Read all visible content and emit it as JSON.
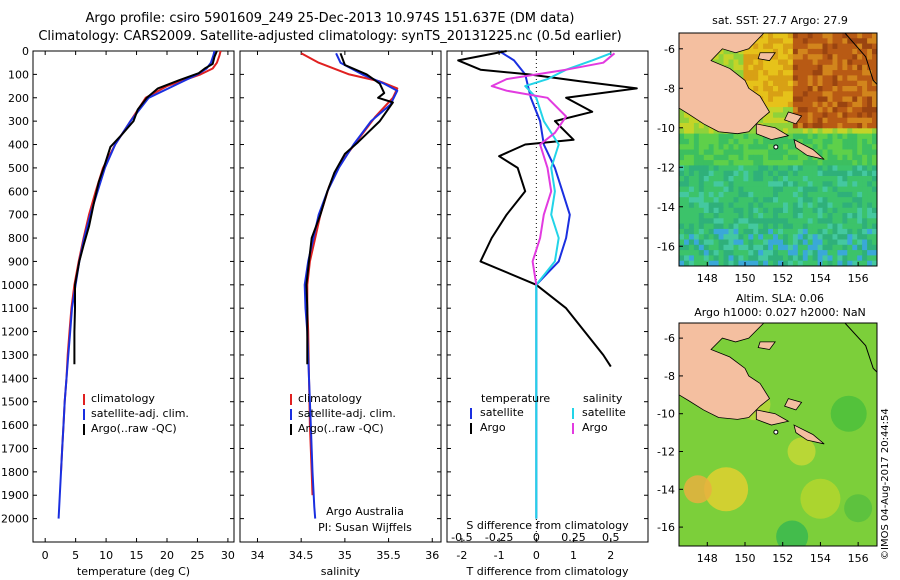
{
  "header": {
    "line1": "Argo profile: csiro 5901609_249 25-Dec-2013 10.974S 151.637E (DM data)",
    "line2": "Climatology: CARS2009. Satellite-adjusted climatology: synTS_20131225.nc (0.5d earlier)"
  },
  "colors": {
    "climatology": "#e02020",
    "satellite": "#1a2fe0",
    "argo": "#000000",
    "argo_s": "#e23be0",
    "sat_s": "#22d4e8"
  },
  "chart_data": [
    {
      "type": "line",
      "id": "temperature-profile",
      "xlabel": "temperature (deg C)",
      "ylabel": "",
      "xlim": [
        -2,
        31
      ],
      "ylim": [
        2100,
        0
      ],
      "xticks": [
        0,
        5,
        10,
        15,
        20,
        25,
        30
      ],
      "yticks": [
        0,
        100,
        200,
        300,
        400,
        500,
        600,
        700,
        800,
        900,
        1000,
        1100,
        1200,
        1300,
        1400,
        1500,
        1600,
        1700,
        1800,
        1900,
        2000
      ],
      "legend": [
        "climatology",
        "satellite-adj. clim.",
        "Argo(..raw -QC)"
      ],
      "series": [
        {
          "name": "climatology",
          "color": "#e02020",
          "points": [
            [
              28.8,
              0
            ],
            [
              28.6,
              20
            ],
            [
              28.2,
              50
            ],
            [
              27.5,
              75
            ],
            [
              25.5,
              100
            ],
            [
              20,
              150
            ],
            [
              16.5,
              200
            ],
            [
              14,
              300
            ],
            [
              11.5,
              400
            ],
            [
              9.5,
              500
            ],
            [
              8.3,
              600
            ],
            [
              7.2,
              700
            ],
            [
              6.3,
              800
            ],
            [
              5.5,
              900
            ],
            [
              4.8,
              1000
            ],
            [
              4.3,
              1100
            ],
            [
              4,
              1200
            ],
            [
              3.7,
              1300
            ],
            [
              3.5,
              1400
            ],
            [
              3.2,
              1500
            ],
            [
              3,
              1600
            ],
            [
              2.8,
              1700
            ],
            [
              2.6,
              1800
            ]
          ]
        },
        {
          "name": "satellite-adj. clim.",
          "color": "#1a2fe0",
          "points": [
            [
              27.8,
              0
            ],
            [
              27.6,
              20
            ],
            [
              27.2,
              50
            ],
            [
              26.5,
              75
            ],
            [
              25,
              100
            ],
            [
              21,
              150
            ],
            [
              17,
              200
            ],
            [
              14,
              300
            ],
            [
              11.5,
              400
            ],
            [
              9.8,
              500
            ],
            [
              8.6,
              600
            ],
            [
              7.4,
              700
            ],
            [
              6.4,
              800
            ],
            [
              5.6,
              900
            ],
            [
              5,
              1000
            ],
            [
              4.4,
              1100
            ],
            [
              4.1,
              1200
            ],
            [
              3.8,
              1300
            ],
            [
              3.5,
              1400
            ],
            [
              3.2,
              1500
            ],
            [
              3,
              1600
            ],
            [
              2.8,
              1700
            ],
            [
              2.6,
              1800
            ],
            [
              2.4,
              1900
            ],
            [
              2.2,
              2000
            ]
          ]
        },
        {
          "name": "Argo(..raw -QC)",
          "color": "#000000",
          "points": [
            [
              28.2,
              0
            ],
            [
              27.8,
              25
            ],
            [
              27.5,
              55
            ],
            [
              26.2,
              75
            ],
            [
              25.2,
              95
            ],
            [
              22,
              125
            ],
            [
              18.5,
              160
            ],
            [
              16.7,
              200
            ],
            [
              15.2,
              250
            ],
            [
              14.5,
              300
            ],
            [
              12.5,
              360
            ],
            [
              10.7,
              410
            ],
            [
              9.6,
              500
            ],
            [
              8.8,
              560
            ],
            [
              8,
              650
            ],
            [
              7.2,
              750
            ],
            [
              6.3,
              830
            ],
            [
              5.6,
              900
            ],
            [
              4.9,
              1000
            ],
            [
              4.9,
              1100
            ],
            [
              4.8,
              1200
            ],
            [
              4.8,
              1300
            ],
            [
              4.8,
              1340
            ]
          ]
        }
      ]
    },
    {
      "type": "line",
      "id": "salinity-profile",
      "xlabel": "salinity",
      "ylabel": "",
      "xlim": [
        33.8,
        36.1
      ],
      "ylim": [
        2100,
        0
      ],
      "xticks": [
        34,
        34.5,
        35,
        35.5,
        36
      ],
      "legend": [
        "climatology",
        "satellite-adj. clim.",
        "Argo(..raw -QC)"
      ],
      "annotation": [
        "Argo Australia",
        "PI: Susan Wijffels"
      ],
      "series": [
        {
          "name": "climatology",
          "color": "#e02020",
          "points": [
            [
              34.5,
              10
            ],
            [
              34.7,
              50
            ],
            [
              35.05,
              100
            ],
            [
              35.4,
              130
            ],
            [
              35.6,
              160
            ],
            [
              35.55,
              200
            ],
            [
              35.35,
              280
            ],
            [
              35.15,
              380
            ],
            [
              34.95,
              480
            ],
            [
              34.82,
              580
            ],
            [
              34.72,
              700
            ],
            [
              34.66,
              800
            ],
            [
              34.6,
              900
            ],
            [
              34.57,
              1000
            ],
            [
              34.57,
              1100
            ],
            [
              34.58,
              1200
            ],
            [
              34.59,
              1400
            ],
            [
              34.6,
              1600
            ],
            [
              34.62,
              1800
            ],
            [
              34.63,
              1900
            ]
          ]
        },
        {
          "name": "satellite-adj. clim.",
          "color": "#1a2fe0",
          "points": [
            [
              34.9,
              10
            ],
            [
              34.95,
              50
            ],
            [
              35.2,
              100
            ],
            [
              35.45,
              140
            ],
            [
              35.6,
              170
            ],
            [
              35.52,
              230
            ],
            [
              35.3,
              300
            ],
            [
              35.1,
              400
            ],
            [
              34.93,
              500
            ],
            [
              34.8,
              600
            ],
            [
              34.7,
              700
            ],
            [
              34.64,
              800
            ],
            [
              34.58,
              900
            ],
            [
              34.54,
              1000
            ],
            [
              34.55,
              1100
            ],
            [
              34.57,
              1200
            ],
            [
              34.59,
              1400
            ],
            [
              34.61,
              1600
            ],
            [
              34.63,
              1800
            ],
            [
              34.65,
              1950
            ],
            [
              34.66,
              2000
            ]
          ]
        },
        {
          "name": "Argo(..raw -QC)",
          "color": "#000000",
          "points": [
            [
              34.95,
              10
            ],
            [
              35.0,
              60
            ],
            [
              35.25,
              100
            ],
            [
              35.4,
              140
            ],
            [
              35.45,
              180
            ],
            [
              35.38,
              200
            ],
            [
              35.55,
              220
            ],
            [
              35.4,
              300
            ],
            [
              35.15,
              390
            ],
            [
              35.0,
              440
            ],
            [
              34.88,
              520
            ],
            [
              34.8,
              600
            ],
            [
              34.72,
              700
            ],
            [
              34.62,
              800
            ],
            [
              34.59,
              900
            ],
            [
              34.56,
              1000
            ],
            [
              34.57,
              1100
            ],
            [
              34.57,
              1200
            ],
            [
              34.57,
              1340
            ]
          ]
        }
      ]
    },
    {
      "type": "line",
      "id": "difference-profile",
      "xlabel_top": "S difference from climatology",
      "xlabel": "T difference from climatology",
      "xlim": [
        -2.4,
        3
      ],
      "ylim": [
        2100,
        0
      ],
      "xticks": [
        -2,
        -1,
        0,
        1,
        2
      ],
      "xticks_s_labels": [
        "-0.5",
        "-0.25",
        "0",
        "0.25",
        "0.5"
      ],
      "xticks_s_pos": [
        -2,
        -1,
        0,
        1,
        2
      ],
      "legend_t": [
        "temperature",
        "satellite",
        "Argo"
      ],
      "legend_s": [
        "salinity",
        "satellite",
        "Argo"
      ],
      "series": [
        {
          "name": "T satellite",
          "color": "#1a2fe0",
          "points": [
            [
              -1,
              0
            ],
            [
              -0.6,
              40
            ],
            [
              -0.3,
              100
            ],
            [
              -0.15,
              200
            ],
            [
              0.1,
              300
            ],
            [
              0.2,
              400
            ],
            [
              0.5,
              500
            ],
            [
              0.7,
              600
            ],
            [
              0.9,
              700
            ],
            [
              0.8,
              800
            ],
            [
              0.6,
              900
            ],
            [
              0.3,
              950
            ],
            [
              0,
              1000
            ],
            [
              0,
              1100
            ],
            [
              0,
              1300
            ],
            [
              0,
              1500
            ],
            [
              0,
              1700
            ],
            [
              0,
              1900
            ],
            [
              0,
              2000
            ]
          ]
        },
        {
          "name": "T Argo",
          "color": "#000000",
          "points": [
            [
              -0.8,
              0
            ],
            [
              -2.1,
              40
            ],
            [
              -1.5,
              80
            ],
            [
              -0.2,
              100
            ],
            [
              1.2,
              130
            ],
            [
              2.7,
              160
            ],
            [
              0.8,
              200
            ],
            [
              1.5,
              260
            ],
            [
              0.5,
              300
            ],
            [
              1.0,
              380
            ],
            [
              -0.3,
              400
            ],
            [
              -1.0,
              450
            ],
            [
              -0.5,
              500
            ],
            [
              -0.3,
              600
            ],
            [
              -0.8,
              700
            ],
            [
              -1.2,
              800
            ],
            [
              -1.5,
              900
            ],
            [
              0,
              1000
            ],
            [
              0.8,
              1100
            ],
            [
              1.3,
              1200
            ],
            [
              1.8,
              1300
            ],
            [
              2.0,
              1350
            ]
          ]
        },
        {
          "name": "S satellite",
          "color": "#22d4e8",
          "points": [
            [
              2,
              10
            ],
            [
              1.5,
              40
            ],
            [
              0.8,
              80
            ],
            [
              0.3,
              120
            ],
            [
              -0.3,
              150
            ],
            [
              0,
              200
            ],
            [
              0.2,
              300
            ],
            [
              0.6,
              400
            ],
            [
              0.4,
              500
            ],
            [
              0.5,
              600
            ],
            [
              0.4,
              700
            ],
            [
              0.6,
              800
            ],
            [
              0.5,
              900
            ],
            [
              0,
              1000
            ],
            [
              0,
              1200
            ],
            [
              0,
              1400
            ],
            [
              0,
              1600
            ],
            [
              0,
              1800
            ],
            [
              0,
              2000
            ]
          ]
        },
        {
          "name": "S Argo",
          "color": "#e23be0",
          "points": [
            [
              2.1,
              10
            ],
            [
              1.8,
              50
            ],
            [
              0.8,
              80
            ],
            [
              -0.8,
              120
            ],
            [
              -1.2,
              150
            ],
            [
              -0.8,
              170
            ],
            [
              0.3,
              200
            ],
            [
              0.8,
              280
            ],
            [
              0.5,
              350
            ],
            [
              0.1,
              400
            ],
            [
              0.3,
              500
            ],
            [
              0.4,
              600
            ],
            [
              0.2,
              700
            ],
            [
              0.1,
              800
            ],
            [
              -0.1,
              900
            ],
            [
              0,
              1000
            ]
          ]
        }
      ]
    }
  ],
  "maps": [
    {
      "id": "sst-map",
      "title": "sat. SST: 27.7 Argo: 27.9",
      "xticks": [
        "148",
        "150",
        "152",
        "154",
        "156"
      ],
      "yticks": [
        "-6",
        "-8",
        "-10",
        "-12",
        "-14",
        "-16"
      ],
      "lon_range": [
        146.5,
        157
      ],
      "lat_range": [
        -17,
        -5.2
      ],
      "argo_lon": 151.637,
      "argo_lat": -10.974
    },
    {
      "id": "sla-map",
      "title1": "Altim. SLA: 0.06",
      "title2": "Argo h1000: 0.027 h2000: NaN",
      "xticks": [
        "148",
        "150",
        "152",
        "154",
        "156"
      ],
      "yticks": [
        "-6",
        "-8",
        "-10",
        "-12",
        "-14",
        "-16"
      ],
      "lon_range": [
        146.5,
        157
      ],
      "lat_range": [
        -17,
        -5.2
      ],
      "argo_lon": 151.637,
      "argo_lat": -10.974
    }
  ],
  "credit": "©IMOS 04-Aug-2017 20:44:54"
}
